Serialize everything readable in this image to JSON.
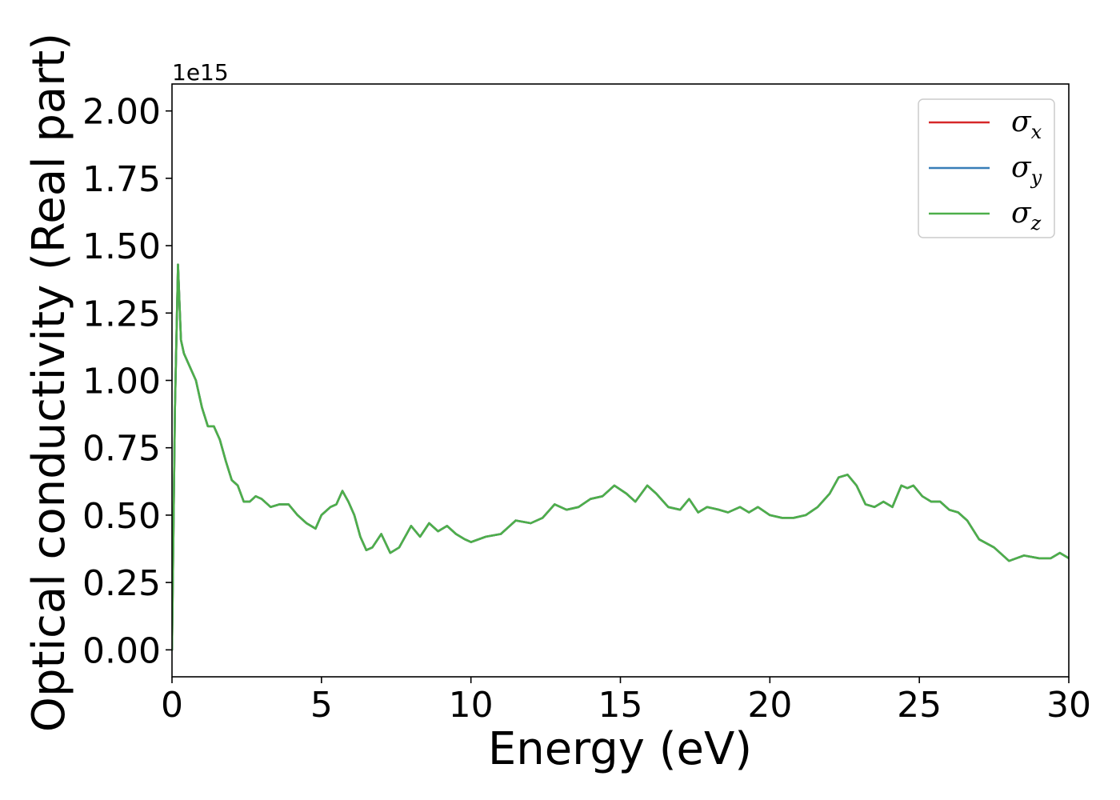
{
  "chart_data": {
    "type": "line",
    "title": "",
    "xlabel": "Energy (eV)",
    "ylabel": "Optical conductivity (Real part)",
    "y_offset_text": "1e15",
    "xlim": [
      0,
      30
    ],
    "ylim": [
      -0.1,
      2.1
    ],
    "xticks": [
      0,
      5,
      10,
      15,
      20,
      25,
      30
    ],
    "xtick_labels": [
      "0",
      "5",
      "10",
      "15",
      "20",
      "25",
      "30"
    ],
    "yticks": [
      0.0,
      0.25,
      0.5,
      0.75,
      1.0,
      1.25,
      1.5,
      1.75,
      2.0
    ],
    "ytick_labels": [
      "0.00",
      "0.25",
      "0.50",
      "0.75",
      "1.00",
      "1.25",
      "1.50",
      "1.75",
      "2.00"
    ],
    "grid": false,
    "legend_position": "top-right",
    "x": [
      0,
      0.1,
      0.2,
      0.3,
      0.4,
      0.6,
      0.8,
      1.0,
      1.2,
      1.4,
      1.6,
      1.8,
      2.0,
      2.2,
      2.4,
      2.6,
      2.8,
      3.0,
      3.3,
      3.6,
      3.9,
      4.2,
      4.5,
      4.8,
      5.0,
      5.3,
      5.5,
      5.7,
      5.9,
      6.1,
      6.3,
      6.5,
      6.7,
      7.0,
      7.3,
      7.6,
      8.0,
      8.3,
      8.6,
      8.9,
      9.2,
      9.5,
      9.8,
      10.0,
      10.5,
      11.0,
      11.5,
      12.0,
      12.4,
      12.8,
      13.2,
      13.6,
      14.0,
      14.4,
      14.8,
      15.2,
      15.5,
      15.9,
      16.2,
      16.6,
      17.0,
      17.3,
      17.6,
      17.9,
      18.3,
      18.6,
      19.0,
      19.3,
      19.6,
      20.0,
      20.4,
      20.8,
      21.2,
      21.6,
      22.0,
      22.3,
      22.6,
      22.9,
      23.2,
      23.5,
      23.8,
      24.1,
      24.4,
      24.6,
      24.8,
      25.1,
      25.4,
      25.7,
      26.0,
      26.3,
      26.6,
      27.0,
      27.5,
      28.0,
      28.5,
      29.0,
      29.4,
      29.7,
      30.0
    ],
    "series": [
      {
        "name": "σx",
        "color": "#d62728",
        "values": [
          0.0,
          0.9,
          1.43,
          1.15,
          1.1,
          1.05,
          1.0,
          0.9,
          0.83,
          0.83,
          0.78,
          0.7,
          0.63,
          0.61,
          0.55,
          0.55,
          0.57,
          0.56,
          0.53,
          0.54,
          0.54,
          0.5,
          0.47,
          0.45,
          0.5,
          0.53,
          0.54,
          0.59,
          0.55,
          0.5,
          0.42,
          0.37,
          0.38,
          0.43,
          0.36,
          0.38,
          0.46,
          0.42,
          0.47,
          0.44,
          0.46,
          0.43,
          0.41,
          0.4,
          0.42,
          0.43,
          0.48,
          0.47,
          0.49,
          0.54,
          0.52,
          0.53,
          0.56,
          0.57,
          0.61,
          0.58,
          0.55,
          0.61,
          0.58,
          0.53,
          0.52,
          0.56,
          0.51,
          0.53,
          0.52,
          0.51,
          0.53,
          0.51,
          0.53,
          0.5,
          0.49,
          0.49,
          0.5,
          0.53,
          0.58,
          0.64,
          0.65,
          0.61,
          0.54,
          0.53,
          0.55,
          0.53,
          0.61,
          0.6,
          0.61,
          0.57,
          0.55,
          0.55,
          0.52,
          0.51,
          0.48,
          0.41,
          0.38,
          0.33,
          0.35,
          0.34,
          0.34,
          0.36,
          0.34
        ]
      },
      {
        "name": "σy",
        "color": "#377eb8",
        "values": [
          0.0,
          0.9,
          1.43,
          1.15,
          1.1,
          1.05,
          1.0,
          0.9,
          0.83,
          0.83,
          0.78,
          0.7,
          0.63,
          0.61,
          0.55,
          0.55,
          0.57,
          0.56,
          0.53,
          0.54,
          0.54,
          0.5,
          0.47,
          0.45,
          0.5,
          0.53,
          0.54,
          0.59,
          0.55,
          0.5,
          0.42,
          0.37,
          0.38,
          0.43,
          0.36,
          0.38,
          0.46,
          0.42,
          0.47,
          0.44,
          0.46,
          0.43,
          0.41,
          0.4,
          0.42,
          0.43,
          0.48,
          0.47,
          0.49,
          0.54,
          0.52,
          0.53,
          0.56,
          0.57,
          0.61,
          0.58,
          0.55,
          0.61,
          0.58,
          0.53,
          0.52,
          0.56,
          0.51,
          0.53,
          0.52,
          0.51,
          0.53,
          0.51,
          0.53,
          0.5,
          0.49,
          0.49,
          0.5,
          0.53,
          0.58,
          0.64,
          0.65,
          0.61,
          0.54,
          0.53,
          0.55,
          0.53,
          0.61,
          0.6,
          0.61,
          0.57,
          0.55,
          0.55,
          0.52,
          0.51,
          0.48,
          0.41,
          0.38,
          0.33,
          0.35,
          0.34,
          0.34,
          0.36,
          0.34
        ]
      },
      {
        "name": "σz",
        "color": "#4daf4a",
        "values": [
          0.0,
          0.9,
          1.43,
          1.15,
          1.1,
          1.05,
          1.0,
          0.9,
          0.83,
          0.83,
          0.78,
          0.7,
          0.63,
          0.61,
          0.55,
          0.55,
          0.57,
          0.56,
          0.53,
          0.54,
          0.54,
          0.5,
          0.47,
          0.45,
          0.5,
          0.53,
          0.54,
          0.59,
          0.55,
          0.5,
          0.42,
          0.37,
          0.38,
          0.43,
          0.36,
          0.38,
          0.46,
          0.42,
          0.47,
          0.44,
          0.46,
          0.43,
          0.41,
          0.4,
          0.42,
          0.43,
          0.48,
          0.47,
          0.49,
          0.54,
          0.52,
          0.53,
          0.56,
          0.57,
          0.61,
          0.58,
          0.55,
          0.61,
          0.58,
          0.53,
          0.52,
          0.56,
          0.51,
          0.53,
          0.52,
          0.51,
          0.53,
          0.51,
          0.53,
          0.5,
          0.49,
          0.49,
          0.5,
          0.53,
          0.58,
          0.64,
          0.65,
          0.61,
          0.54,
          0.53,
          0.55,
          0.53,
          0.61,
          0.6,
          0.61,
          0.57,
          0.55,
          0.55,
          0.52,
          0.51,
          0.48,
          0.41,
          0.38,
          0.33,
          0.35,
          0.34,
          0.34,
          0.36,
          0.34
        ]
      }
    ],
    "legend": [
      {
        "symbol": "σ",
        "sub": "x",
        "color": "#d62728"
      },
      {
        "symbol": "σ",
        "sub": "y",
        "color": "#377eb8"
      },
      {
        "symbol": "σ",
        "sub": "z",
        "color": "#4daf4a"
      }
    ]
  }
}
